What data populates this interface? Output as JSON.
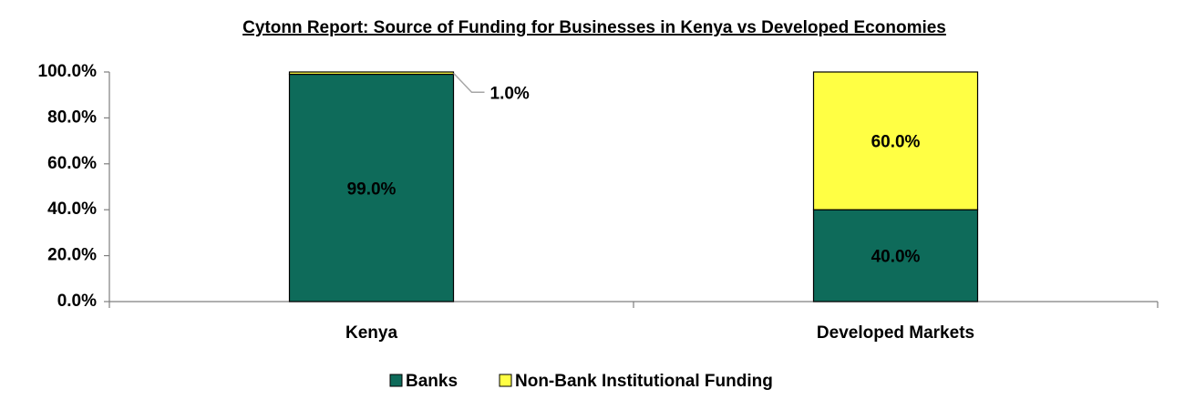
{
  "chart_data": {
    "type": "stacked_bar",
    "title": "Cytonn Report: Source of Funding for Businesses in Kenya vs Developed Economies",
    "categories": [
      "Kenya",
      "Developed Markets"
    ],
    "series": [
      {
        "name": "Banks",
        "color": "#0e6b5a",
        "values": [
          99,
          40
        ],
        "value_labels": [
          "99.0%",
          "40.0%"
        ]
      },
      {
        "name": "Non-Bank Institutional Funding",
        "color": "#ffff44",
        "values": [
          1,
          60
        ],
        "value_labels": [
          "1.0%",
          "60.0%"
        ]
      }
    ],
    "ylim": [
      0,
      100
    ],
    "yticks": [
      {
        "value": 0,
        "label": "0.0%"
      },
      {
        "value": 20,
        "label": "20.0%"
      },
      {
        "value": 40,
        "label": "40.0%"
      },
      {
        "value": 60,
        "label": "60.0%"
      },
      {
        "value": 80,
        "label": "80.0%"
      },
      {
        "value": 100,
        "label": "100.0%"
      }
    ],
    "grid": false,
    "legend": "bottom"
  }
}
